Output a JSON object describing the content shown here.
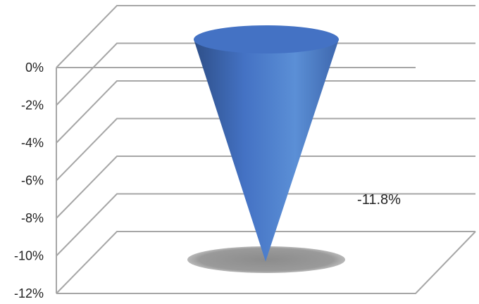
{
  "chart_data": {
    "type": "bar",
    "bar_shape": "cone",
    "view": "3d",
    "categories": [
      ""
    ],
    "values": [
      -11.8
    ],
    "value_format": "percent",
    "ylim": [
      -12,
      0
    ],
    "y_ticks": [
      0,
      -2,
      -4,
      -6,
      -8,
      -10,
      -12
    ],
    "tick_labels": [
      "0%",
      "-2%",
      "-4%",
      "-6%",
      "-8%",
      "-10%",
      "-12%"
    ],
    "data_labels": [
      "-11.8%"
    ],
    "title": "",
    "xlabel": "",
    "ylabel": "",
    "grid": true,
    "legend": "none",
    "colors": {
      "bar_light": "#5b8fd6",
      "bar_mid": "#4472c4",
      "bar_dark": "#2e4f88",
      "grid": "#a6a6a6",
      "shadow": "#8c8c8c"
    }
  }
}
